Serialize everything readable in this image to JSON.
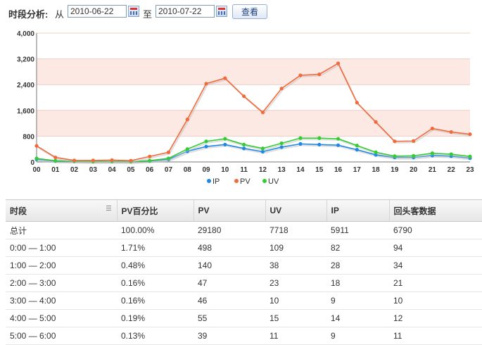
{
  "toolbar": {
    "label": "时段分析:",
    "from_text": "从",
    "start_date": "2010-06-22",
    "to_text": "至",
    "end_date": "2010-07-22",
    "search_button": "查看"
  },
  "chart_data": {
    "type": "line",
    "categories": [
      "00",
      "01",
      "02",
      "03",
      "04",
      "05",
      "06",
      "07",
      "08",
      "09",
      "10",
      "11",
      "12",
      "13",
      "14",
      "15",
      "16",
      "17",
      "18",
      "19",
      "20",
      "21",
      "22",
      "23"
    ],
    "yticks": [
      "0",
      "800",
      "1,600",
      "2,400",
      "3,200",
      "4,000"
    ],
    "ylim": [
      0,
      4000
    ],
    "grid": true,
    "legend": "bottom",
    "series": [
      {
        "name": "IP",
        "color": "#1e88e5",
        "values": [
          82,
          28,
          18,
          9,
          14,
          9,
          30,
          80,
          330,
          480,
          540,
          420,
          320,
          460,
          560,
          540,
          520,
          380,
          220,
          140,
          140,
          200,
          180,
          120
        ]
      },
      {
        "name": "PV",
        "color": "#f06a3c",
        "values": [
          498,
          140,
          47,
          46,
          55,
          39,
          170,
          300,
          1320,
          2430,
          2600,
          2040,
          1540,
          2280,
          2690,
          2720,
          3060,
          1840,
          1240,
          640,
          650,
          1040,
          930,
          860
        ]
      },
      {
        "name": "UV",
        "color": "#33cc33",
        "values": [
          109,
          38,
          23,
          10,
          15,
          11,
          40,
          110,
          400,
          640,
          720,
          540,
          420,
          580,
          740,
          740,
          720,
          510,
          300,
          180,
          190,
          270,
          240,
          170
        ]
      }
    ]
  },
  "table": {
    "headers": [
      "时段",
      "PV百分比",
      "PV",
      "UV",
      "IP",
      "回头客数据"
    ],
    "rows": [
      [
        "总计",
        "100.00%",
        "29180",
        "7718",
        "5911",
        "6790"
      ],
      [
        "0:00 — 1:00",
        "1.71%",
        "498",
        "109",
        "82",
        "94"
      ],
      [
        "1:00 — 2:00",
        "0.48%",
        "140",
        "38",
        "28",
        "34"
      ],
      [
        "2:00 — 3:00",
        "0.16%",
        "47",
        "23",
        "18",
        "21"
      ],
      [
        "3:00 — 4:00",
        "0.16%",
        "46",
        "10",
        "9",
        "10"
      ],
      [
        "4:00 — 5:00",
        "0.19%",
        "55",
        "15",
        "14",
        "12"
      ],
      [
        "5:00 — 6:00",
        "0.13%",
        "39",
        "11",
        "9",
        "11"
      ]
    ]
  }
}
